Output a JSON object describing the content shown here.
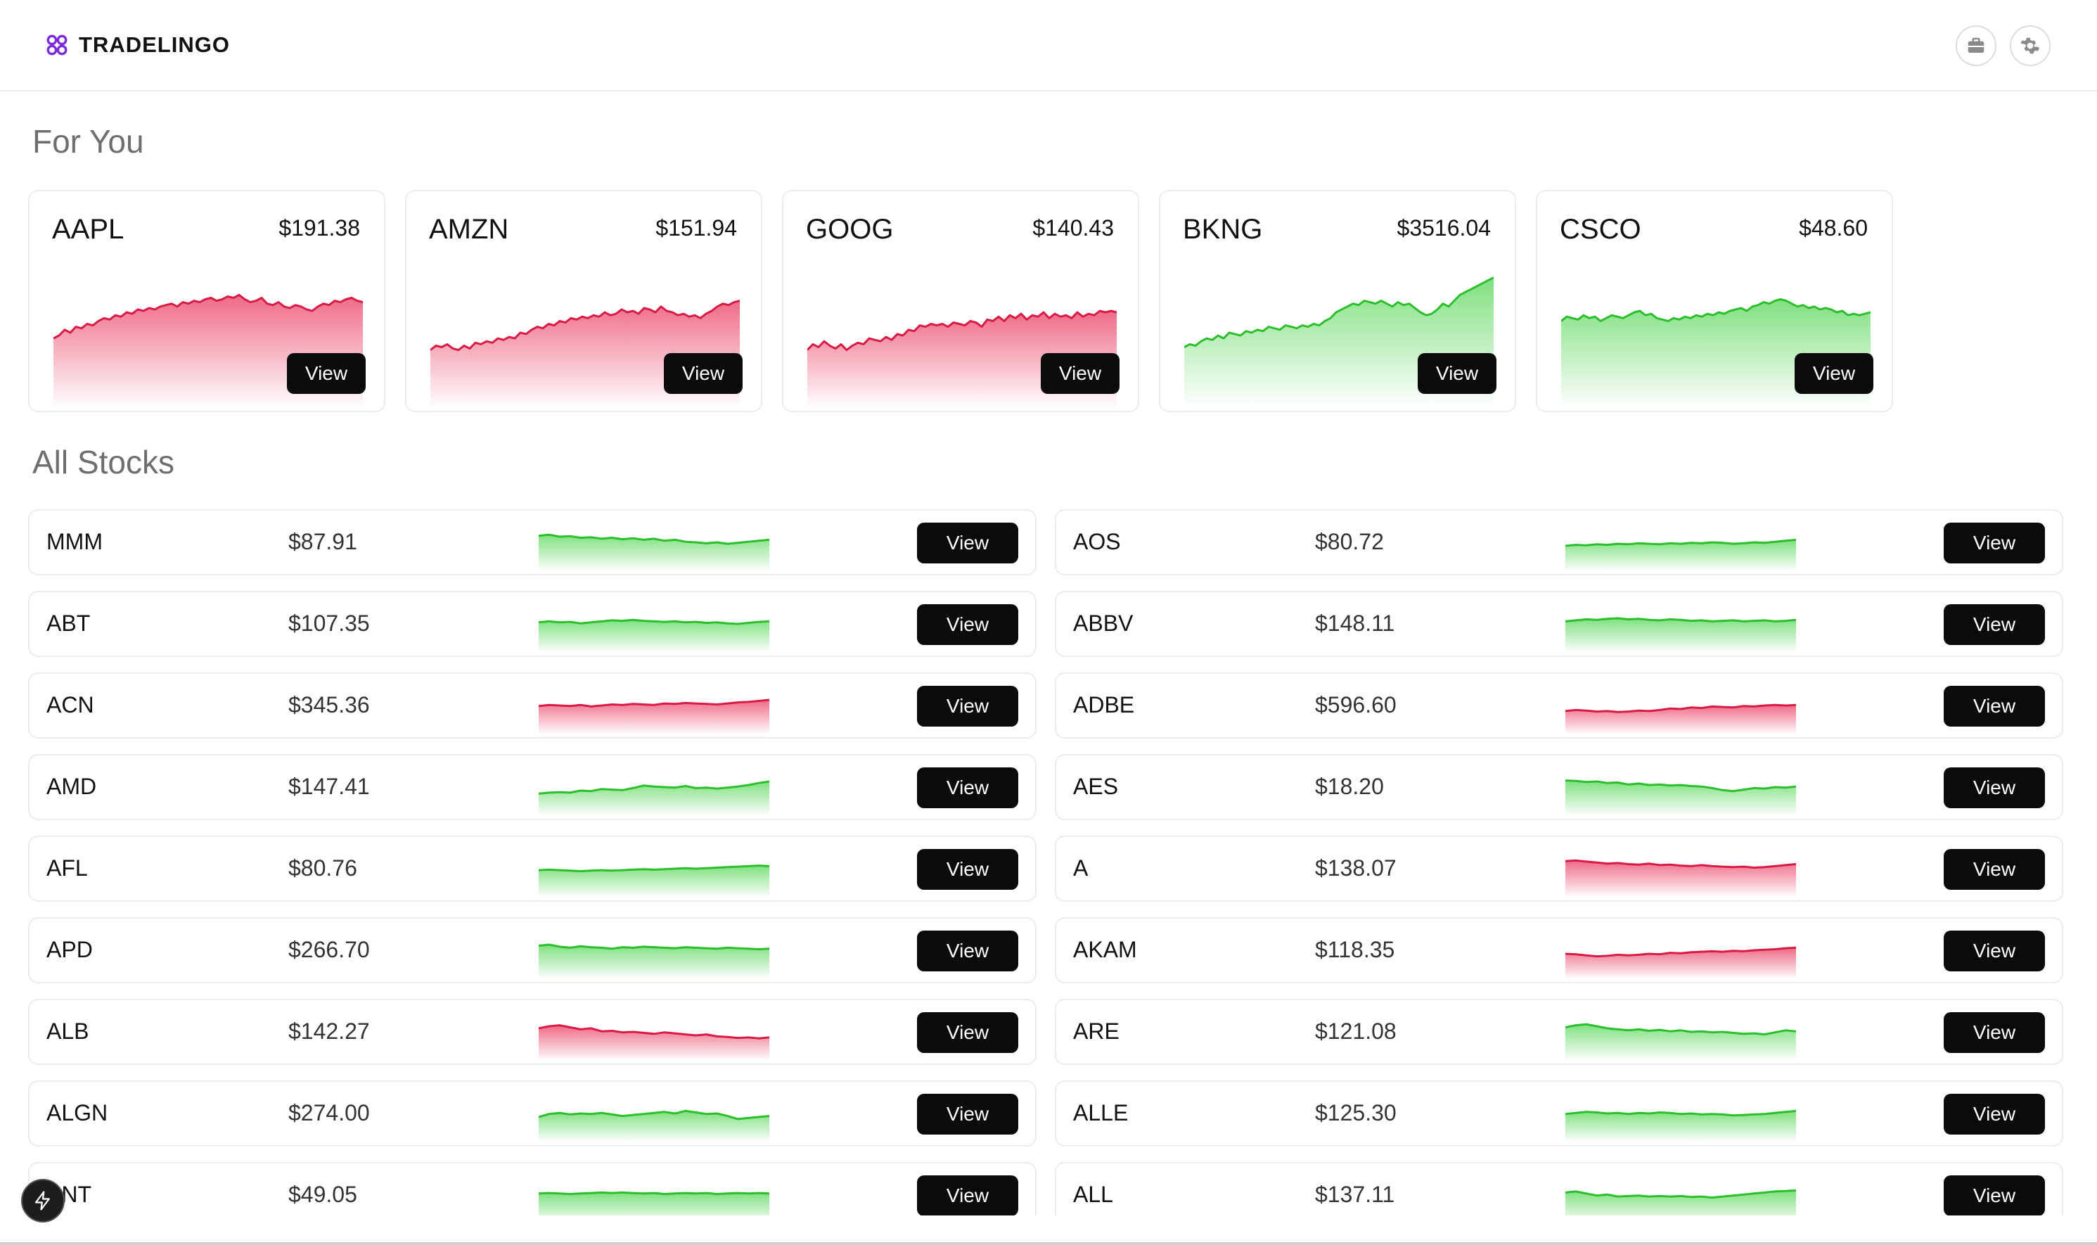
{
  "app": {
    "brand_name": "TRADELINGO",
    "brand_icon": "tradelingo-logo-icon",
    "accent_color": "#7b2cd6"
  },
  "header": {
    "portfolio_icon": "briefcase-icon",
    "settings_icon": "gear-icon"
  },
  "for_you": {
    "title": "For You",
    "cards": [
      {
        "symbol": "AAPL",
        "price": "$191.38",
        "trend": "down",
        "view_label": "View",
        "series": [
          48,
          50,
          54,
          52,
          56,
          55,
          58,
          57,
          60,
          62,
          61,
          64,
          63,
          66,
          65,
          68,
          67,
          69,
          68,
          70,
          71,
          72,
          70,
          73,
          72,
          74,
          73,
          75,
          76,
          74,
          75,
          77,
          76,
          78,
          75,
          73,
          74,
          76,
          72,
          71,
          73,
          70,
          69,
          71,
          70,
          68,
          67,
          70,
          72,
          71,
          74,
          73,
          75,
          76,
          74,
          73
        ]
      },
      {
        "symbol": "AMZN",
        "price": "$151.94",
        "trend": "down",
        "view_label": "View",
        "series": [
          40,
          43,
          42,
          44,
          41,
          40,
          43,
          41,
          45,
          44,
          46,
          45,
          48,
          47,
          49,
          48,
          52,
          51,
          54,
          56,
          55,
          58,
          57,
          60,
          59,
          62,
          61,
          63,
          62,
          64,
          63,
          66,
          64,
          65,
          68,
          66,
          67,
          65,
          69,
          68,
          66,
          70,
          67,
          66,
          64,
          65,
          63,
          64,
          62,
          65,
          67,
          70,
          72,
          71,
          73,
          74
        ]
      },
      {
        "symbol": "GOOG",
        "price": "$140.43",
        "trend": "down",
        "view_label": "View",
        "series": [
          40,
          44,
          42,
          46,
          43,
          41,
          44,
          40,
          43,
          45,
          44,
          48,
          47,
          46,
          49,
          47,
          51,
          50,
          54,
          53,
          57,
          56,
          58,
          57,
          58,
          56,
          59,
          58,
          57,
          60,
          59,
          56,
          61,
          60,
          63,
          60,
          64,
          62,
          65,
          61,
          64,
          63,
          66,
          62,
          65,
          63,
          64,
          62,
          66,
          63,
          65,
          64,
          67,
          66,
          67,
          66
        ]
      },
      {
        "symbol": "BKNG",
        "price": "$3516.04",
        "trend": "up",
        "view_label": "View",
        "series": [
          42,
          44,
          43,
          46,
          48,
          47,
          50,
          48,
          52,
          51,
          50,
          53,
          52,
          54,
          53,
          56,
          55,
          54,
          57,
          56,
          55,
          57,
          56,
          58,
          57,
          60,
          62,
          66,
          68,
          70,
          72,
          71,
          74,
          73,
          72,
          74,
          72,
          70,
          73,
          71,
          72,
          69,
          66,
          64,
          65,
          68,
          72,
          70,
          74,
          78,
          80,
          82,
          84,
          86,
          88,
          90
        ]
      },
      {
        "symbol": "CSCO",
        "price": "$48.60",
        "trend": "up",
        "view_label": "View",
        "series": [
          60,
          63,
          62,
          61,
          64,
          62,
          63,
          60,
          62,
          64,
          63,
          62,
          64,
          66,
          67,
          64,
          65,
          62,
          61,
          60,
          62,
          61,
          63,
          62,
          64,
          63,
          65,
          64,
          66,
          65,
          67,
          68,
          69,
          67,
          70,
          71,
          73,
          72,
          74,
          75,
          74,
          72,
          70,
          71,
          69,
          70,
          68,
          69,
          68,
          66,
          67,
          64,
          65,
          64,
          65,
          66
        ]
      }
    ]
  },
  "all_stocks": {
    "title": "All Stocks",
    "rows": [
      {
        "symbol": "MMM",
        "price": "$87.91",
        "trend": "up",
        "view_label": "View",
        "series": [
          70,
          72,
          68,
          69,
          66,
          67,
          64,
          66,
          63,
          65,
          62,
          64,
          60,
          62,
          58,
          57,
          55,
          57,
          54,
          56,
          58,
          60,
          62
        ]
      },
      {
        "symbol": "AOS",
        "price": "$80.72",
        "trend": "up",
        "view_label": "View",
        "series": [
          50,
          52,
          51,
          53,
          52,
          54,
          53,
          55,
          54,
          53,
          55,
          54,
          56,
          55,
          57,
          56,
          54,
          55,
          57,
          56,
          58,
          60,
          62
        ]
      },
      {
        "symbol": "ABT",
        "price": "$107.35",
        "trend": "up",
        "view_label": "View",
        "series": [
          60,
          62,
          60,
          61,
          58,
          60,
          62,
          64,
          63,
          65,
          63,
          62,
          61,
          62,
          60,
          61,
          59,
          60,
          58,
          57,
          59,
          61,
          62
        ]
      },
      {
        "symbol": "ABBV",
        "price": "$148.11",
        "trend": "up",
        "view_label": "View",
        "series": [
          62,
          64,
          66,
          65,
          67,
          68,
          66,
          67,
          65,
          64,
          66,
          65,
          63,
          64,
          62,
          63,
          64,
          62,
          63,
          64,
          62,
          63,
          65
        ]
      },
      {
        "symbol": "ACN",
        "price": "$345.36",
        "trend": "down",
        "view_label": "View",
        "series": [
          56,
          58,
          57,
          56,
          58,
          55,
          57,
          59,
          58,
          60,
          59,
          58,
          61,
          60,
          62,
          61,
          60,
          59,
          61,
          63,
          64,
          66,
          68
        ]
      },
      {
        "symbol": "ADBE",
        "price": "$596.60",
        "trend": "down",
        "view_label": "View",
        "series": [
          46,
          48,
          47,
          45,
          46,
          44,
          45,
          47,
          46,
          48,
          51,
          50,
          53,
          52,
          55,
          54,
          53,
          56,
          55,
          57,
          58,
          57,
          58
        ]
      },
      {
        "symbol": "AMD",
        "price": "$147.41",
        "trend": "up",
        "view_label": "View",
        "series": [
          44,
          46,
          47,
          46,
          50,
          49,
          53,
          52,
          51,
          55,
          60,
          58,
          57,
          56,
          59,
          55,
          56,
          54,
          56,
          58,
          61,
          65,
          68
        ]
      },
      {
        "symbol": "AES",
        "price": "$18.20",
        "trend": "up",
        "view_label": "View",
        "series": [
          70,
          69,
          67,
          68,
          65,
          66,
          62,
          64,
          61,
          62,
          60,
          61,
          59,
          58,
          55,
          51,
          49,
          52,
          55,
          54,
          57,
          56,
          58
        ]
      },
      {
        "symbol": "AFL",
        "price": "$80.76",
        "trend": "up",
        "view_label": "View",
        "series": [
          54,
          55,
          54,
          53,
          52,
          53,
          54,
          53,
          54,
          55,
          56,
          55,
          56,
          57,
          58,
          57,
          58,
          59,
          60,
          61,
          62,
          63,
          62
        ]
      },
      {
        "symbol": "A",
        "price": "$138.07",
        "trend": "down",
        "view_label": "View",
        "series": [
          72,
          73,
          71,
          69,
          67,
          68,
          66,
          65,
          67,
          64,
          65,
          63,
          62,
          64,
          62,
          61,
          60,
          61,
          59,
          60,
          62,
          64,
          66
        ]
      },
      {
        "symbol": "APD",
        "price": "$266.70",
        "trend": "up",
        "view_label": "View",
        "series": [
          66,
          68,
          64,
          62,
          65,
          63,
          62,
          60,
          63,
          62,
          64,
          63,
          62,
          61,
          63,
          62,
          61,
          60,
          62,
          61,
          60,
          59,
          60
        ]
      },
      {
        "symbol": "AKAM",
        "price": "$118.35",
        "trend": "down",
        "view_label": "View",
        "series": [
          50,
          49,
          47,
          45,
          46,
          48,
          47,
          48,
          50,
          49,
          52,
          51,
          53,
          54,
          55,
          54,
          56,
          55,
          57,
          58,
          59,
          61,
          62
        ]
      },
      {
        "symbol": "ALB",
        "price": "$142.27",
        "trend": "down",
        "view_label": "View",
        "series": [
          64,
          68,
          70,
          66,
          62,
          64,
          58,
          59,
          56,
          57,
          55,
          53,
          56,
          54,
          52,
          50,
          52,
          48,
          47,
          45,
          46,
          44,
          46
        ]
      },
      {
        "symbol": "ARE",
        "price": "$121.08",
        "trend": "up",
        "view_label": "View",
        "series": [
          66,
          70,
          72,
          68,
          64,
          62,
          60,
          62,
          59,
          61,
          58,
          60,
          57,
          58,
          56,
          57,
          55,
          53,
          54,
          52,
          56,
          60,
          58
        ]
      },
      {
        "symbol": "ALGN",
        "price": "$274.00",
        "trend": "up",
        "view_label": "View",
        "series": [
          50,
          56,
          58,
          55,
          57,
          56,
          58,
          55,
          52,
          54,
          56,
          58,
          60,
          57,
          62,
          59,
          56,
          57,
          52,
          46,
          48,
          50,
          52
        ]
      },
      {
        "symbol": "ALLE",
        "price": "$125.30",
        "trend": "up",
        "view_label": "View",
        "series": [
          56,
          58,
          60,
          59,
          57,
          58,
          56,
          58,
          57,
          59,
          58,
          56,
          57,
          55,
          56,
          55,
          53,
          54,
          55,
          56,
          58,
          60,
          62
        ]
      },
      {
        "symbol": "ANT",
        "price": "$49.05",
        "trend": "up",
        "view_label": "View",
        "series": [
          60,
          61,
          60,
          59,
          60,
          61,
          62,
          61,
          62,
          61,
          60,
          61,
          59,
          60,
          61,
          60,
          61,
          59,
          60,
          61,
          60,
          61,
          60
        ]
      },
      {
        "symbol": "ALL",
        "price": "$137.11",
        "trend": "up",
        "view_label": "View",
        "series": [
          62,
          64,
          60,
          56,
          58,
          54,
          55,
          56,
          54,
          55,
          54,
          55,
          53,
          54,
          52,
          54,
          56,
          58,
          60,
          62,
          64,
          65,
          66
        ]
      }
    ]
  },
  "colors": {
    "up_line": "#2bbf2b",
    "up_fill": "#7fe07f",
    "down_line": "#d81b45",
    "down_fill": "#ef6a86"
  },
  "fab_icon": "bolt-icon"
}
